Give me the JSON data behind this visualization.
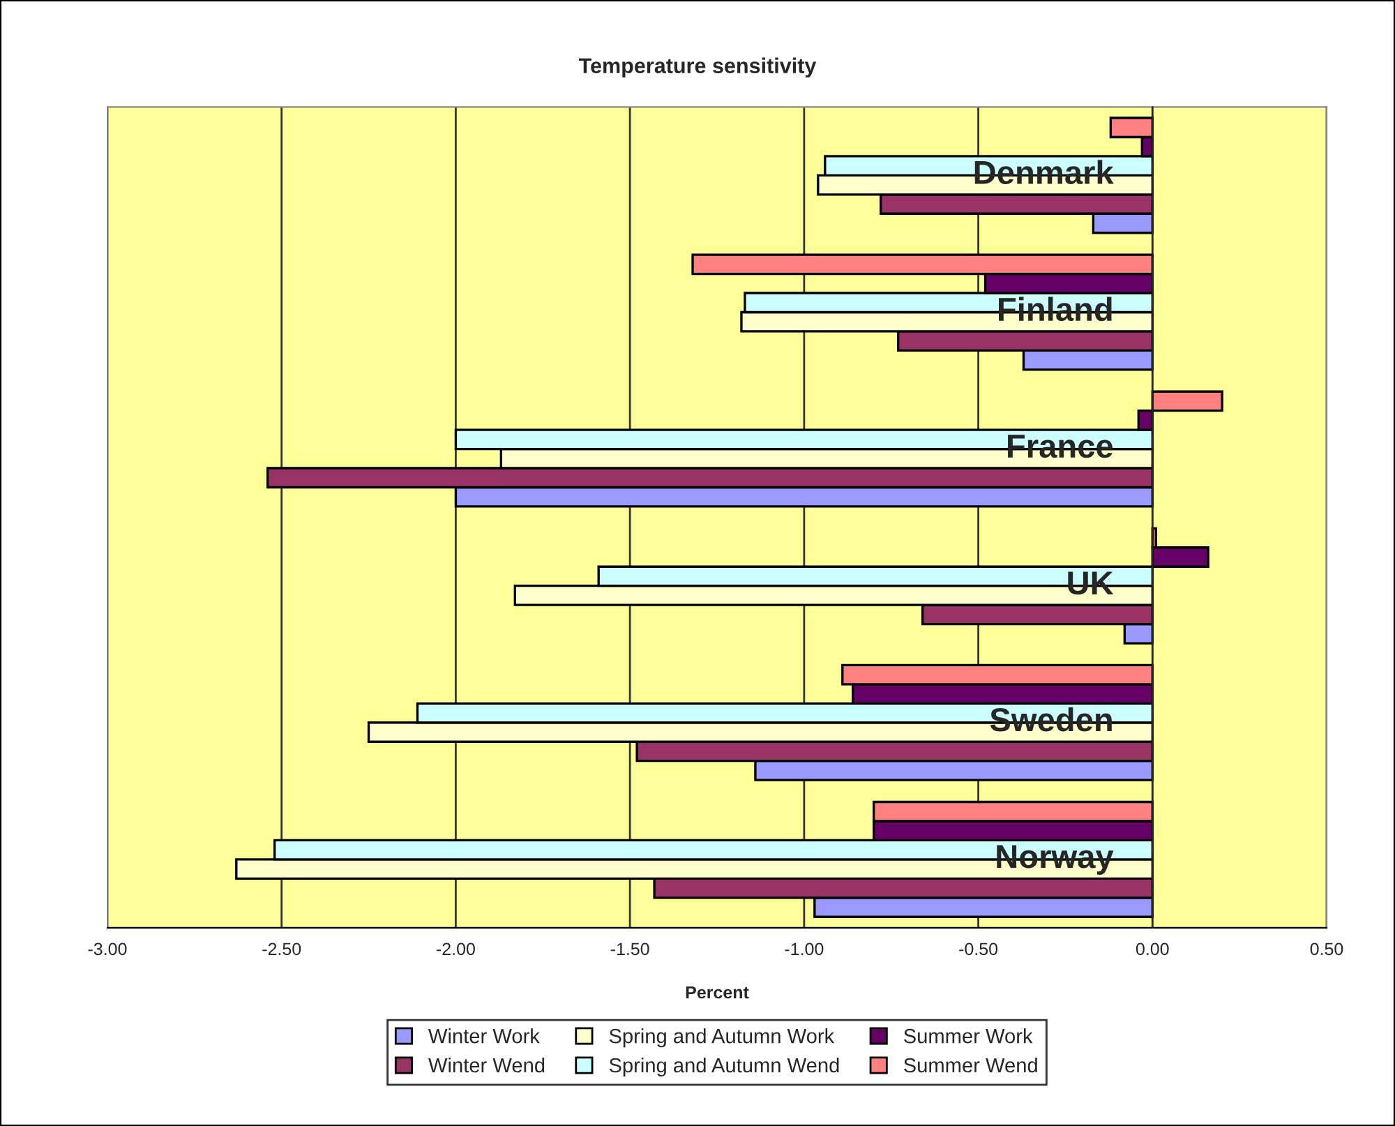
{
  "chart_data": {
    "type": "bar",
    "orientation": "horizontal",
    "title": "Temperature sensitivity",
    "xlabel": "Percent",
    "categories": [
      "Denmark",
      "Finland",
      "France",
      "UK",
      "Sweden",
      "Norway"
    ],
    "series": [
      {
        "name": "Winter Work",
        "color": "#9999ff",
        "values": [
          -0.17,
          -0.37,
          -2.0,
          -0.08,
          -1.14,
          -0.97
        ]
      },
      {
        "name": "Winter Wend",
        "color": "#993366",
        "values": [
          -0.78,
          -0.73,
          -2.54,
          -0.66,
          -1.48,
          -1.43
        ]
      },
      {
        "name": "Spring and Autumn Work",
        "color": "#ffffcc",
        "values": [
          -0.96,
          -1.18,
          -1.87,
          -1.83,
          -2.25,
          -2.63
        ]
      },
      {
        "name": "Spring and Autumn Wend",
        "color": "#ccffff",
        "values": [
          -0.94,
          -1.17,
          -2.0,
          -1.59,
          -2.11,
          -2.52
        ]
      },
      {
        "name": "Summer Work",
        "color": "#660066",
        "values": [
          -0.03,
          -0.48,
          -0.04,
          0.16,
          -0.86,
          -0.8
        ]
      },
      {
        "name": "Summer Wend",
        "color": "#ff8080",
        "values": [
          -0.12,
          -1.32,
          0.2,
          0.01,
          -0.89,
          -0.8
        ]
      }
    ],
    "xlim": [
      -3.0,
      0.5
    ],
    "xticks": [
      {
        "value": -3.0,
        "label": "-3.00"
      },
      {
        "value": -2.5,
        "label": "-2.50"
      },
      {
        "value": -2.0,
        "label": "-2.00"
      },
      {
        "value": -1.5,
        "label": "-1.50"
      },
      {
        "value": -1.0,
        "label": "-1.00"
      },
      {
        "value": -0.5,
        "label": "-0.50"
      },
      {
        "value": 0.0,
        "label": "0.00"
      },
      {
        "value": 0.5,
        "label": "0.50"
      }
    ],
    "grid": "x",
    "legend": "bottom"
  }
}
